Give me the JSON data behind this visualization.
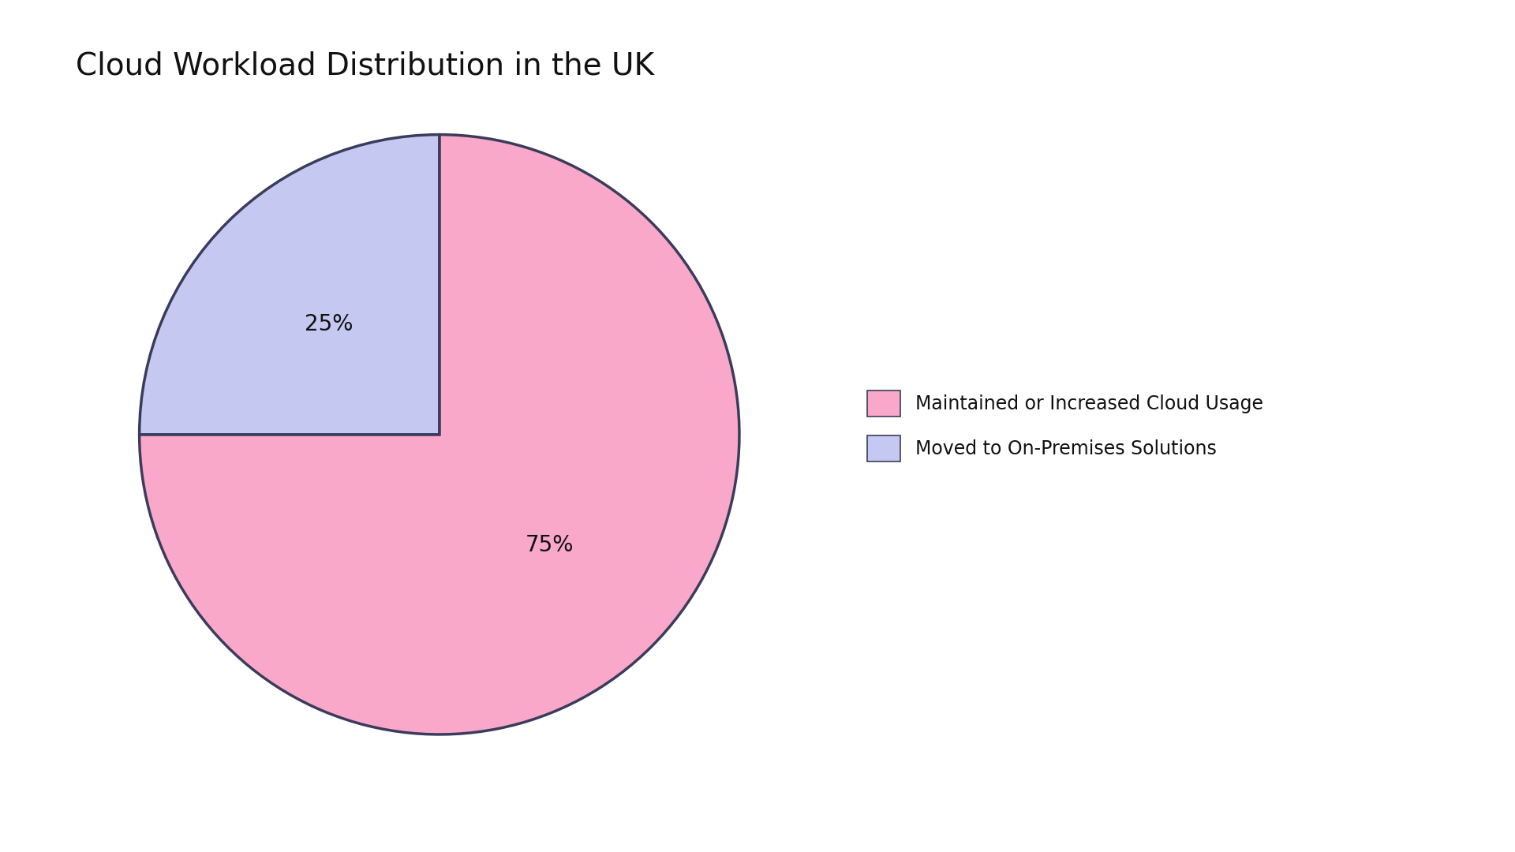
{
  "title": "Cloud Workload Distribution in the UK",
  "slices": [
    75,
    25
  ],
  "labels": [
    "Maintained or Increased Cloud Usage",
    "Moved to On-Premises Solutions"
  ],
  "colors": [
    "#F9A8C9",
    "#C5C8F0"
  ],
  "edge_color": "#3B3B5C",
  "edge_width": 2.5,
  "pct_labels": [
    "75%",
    "25%"
  ],
  "pct_fontsize": 20,
  "title_fontsize": 28,
  "start_angle": 90,
  "background_color": "#FFFFFF",
  "text_color": "#111111",
  "legend_fontsize": 17,
  "legend_marker_size": 18
}
